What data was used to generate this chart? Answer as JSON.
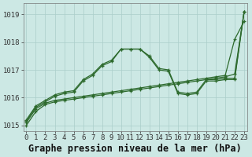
{
  "title": "Graphe pression niveau de la mer (hPa)",
  "series": [
    {
      "x": [
        0,
        1,
        2,
        3,
        4,
        5,
        6,
        7,
        8,
        9,
        10,
        11,
        12,
        13,
        14,
        15,
        16,
        17,
        18,
        19,
        20,
        21,
        22,
        23
      ],
      "y": [
        1015.0,
        1015.5,
        1015.75,
        1015.85,
        1015.9,
        1015.95,
        1016.0,
        1016.05,
        1016.1,
        1016.15,
        1016.2,
        1016.25,
        1016.3,
        1016.35,
        1016.4,
        1016.45,
        1016.5,
        1016.55,
        1016.6,
        1016.65,
        1016.7,
        1016.75,
        1016.85,
        1019.1
      ],
      "style": "-",
      "marker": "+"
    },
    {
      "x": [
        0,
        1,
        2,
        3,
        4,
        5,
        6,
        7,
        8,
        9,
        10,
        11,
        12,
        13,
        14,
        15,
        16,
        17,
        18,
        19,
        20,
        21,
        22,
        23
      ],
      "y": [
        1015.1,
        1015.6,
        1015.8,
        1015.9,
        1015.95,
        1016.0,
        1016.05,
        1016.1,
        1016.15,
        1016.2,
        1016.25,
        1016.3,
        1016.35,
        1016.4,
        1016.45,
        1016.5,
        1016.55,
        1016.6,
        1016.65,
        1016.7,
        1016.75,
        1016.8,
        1018.1,
        1018.75
      ],
      "style": "-",
      "marker": "+"
    },
    {
      "x": [
        0,
        1,
        2,
        3,
        4,
        5,
        6,
        7,
        8,
        9,
        10,
        11,
        12,
        13,
        14,
        15,
        16,
        17,
        18,
        19,
        20,
        21,
        22,
        23
      ],
      "y": [
        1015.15,
        1015.65,
        1015.85,
        1016.05,
        1016.15,
        1016.2,
        1016.6,
        1016.8,
        1017.15,
        1017.3,
        1017.75,
        1017.75,
        1017.75,
        1017.45,
        1017.0,
        1016.95,
        1016.15,
        1016.1,
        1016.15,
        1016.6,
        1016.6,
        1016.65,
        1016.65,
        1019.1
      ],
      "style": "-",
      "marker": "+"
    },
    {
      "x": [
        0,
        1,
        2,
        3,
        4,
        5,
        6,
        7,
        8,
        9,
        10,
        11,
        12,
        13,
        14,
        15,
        16,
        17,
        18,
        19,
        20,
        21,
        22,
        23
      ],
      "y": [
        1015.2,
        1015.7,
        1015.9,
        1016.1,
        1016.2,
        1016.25,
        1016.65,
        1016.85,
        1017.2,
        1017.35,
        1017.75,
        1017.75,
        1017.75,
        1017.5,
        1017.05,
        1017.0,
        1016.2,
        1016.15,
        1016.2,
        1016.65,
        1016.65,
        1016.7,
        1016.7,
        1019.1
      ],
      "style": "-",
      "marker": "+"
    }
  ],
  "color": "#2d6a2d",
  "ylim": [
    1014.8,
    1019.4
  ],
  "yticks": [
    1015,
    1016,
    1017,
    1018,
    1019
  ],
  "xlim": [
    -0.3,
    23.3
  ],
  "xticks": [
    0,
    1,
    2,
    3,
    4,
    5,
    6,
    7,
    8,
    9,
    10,
    11,
    12,
    13,
    14,
    15,
    16,
    17,
    18,
    19,
    20,
    21,
    22,
    23
  ],
  "bg_color": "#cce8e4",
  "grid_color": "#aaceca",
  "title_fontsize": 8.5,
  "tick_fontsize": 6.5
}
